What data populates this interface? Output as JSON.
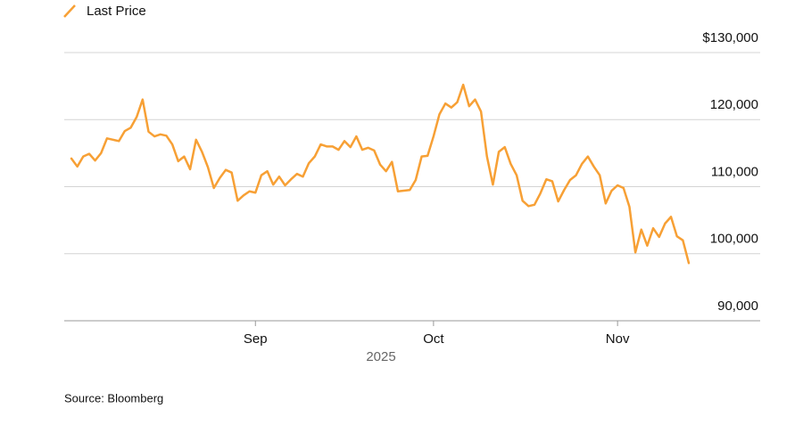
{
  "chart_data": {
    "type": "line",
    "legend": "top-left",
    "series": [
      {
        "name": "Last Price",
        "color": "#f7a035",
        "values": [
          114200,
          113000,
          114500,
          114900,
          113900,
          115000,
          117200,
          117000,
          116800,
          118300,
          118800,
          120400,
          123000,
          118200,
          117500,
          117800,
          117600,
          116300,
          113800,
          114500,
          112600,
          117000,
          115200,
          112900,
          109800,
          111300,
          112500,
          112100,
          107900,
          108700,
          109300,
          109100,
          111700,
          112300,
          110300,
          111500,
          110200,
          111100,
          111900,
          111500,
          113500,
          114500,
          116300,
          116000,
          116000,
          115500,
          116800,
          115900,
          117500,
          115500,
          115800,
          115400,
          113300,
          112300,
          113700,
          109300,
          109400,
          109500,
          111000,
          114500,
          114600,
          117500,
          120800,
          122400,
          121800,
          122600,
          125200,
          122000,
          123000,
          121200,
          114500,
          110300,
          115200,
          115900,
          113400,
          111700,
          107900,
          107100,
          107300,
          109000,
          111100,
          110800,
          107800,
          109500,
          111000,
          111700,
          113400,
          114500,
          113000,
          111700,
          107500,
          109400,
          110200,
          109800,
          107000,
          100200,
          103600,
          101200,
          103800,
          102500,
          104500,
          105500,
          102600,
          102000,
          98600
        ]
      }
    ],
    "categories": [
      null,
      null,
      null,
      null,
      null,
      null,
      null,
      null,
      null,
      null,
      null,
      null,
      null,
      null,
      null,
      null,
      null,
      null,
      null,
      null,
      null,
      null,
      null,
      null,
      null,
      null,
      null,
      null,
      null,
      null,
      null,
      "Sep",
      null,
      null,
      null,
      null,
      null,
      null,
      null,
      null,
      null,
      null,
      null,
      null,
      null,
      null,
      null,
      null,
      null,
      null,
      null,
      null,
      null,
      null,
      null,
      null,
      null,
      null,
      null,
      null,
      null,
      "Oct",
      null,
      null,
      null,
      null,
      null,
      null,
      null,
      null,
      null,
      null,
      null,
      null,
      null,
      null,
      null,
      null,
      null,
      null,
      null,
      null,
      null,
      null,
      null,
      null,
      null,
      null,
      null,
      null,
      null,
      null,
      "Nov",
      null,
      null,
      null,
      null,
      null,
      null,
      null,
      null,
      null,
      null,
      null,
      null
    ],
    "xlabel": "2025",
    "ylim": [
      90000,
      130000
    ],
    "yticks": [
      {
        "value": 90000,
        "label": "90,000"
      },
      {
        "value": 100000,
        "label": "100,000"
      },
      {
        "value": 110000,
        "label": "110,000"
      },
      {
        "value": 120000,
        "label": "120,000"
      },
      {
        "value": 130000,
        "label": "$130,000"
      }
    ],
    "grid": true,
    "source": "Source: Bloomberg"
  }
}
